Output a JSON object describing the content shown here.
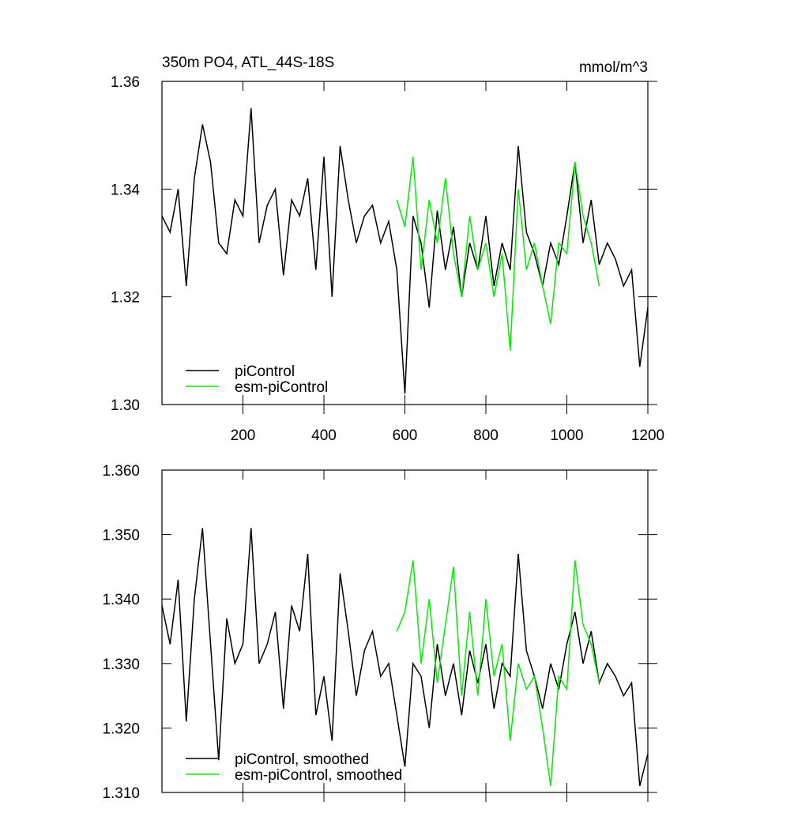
{
  "chart_data": [
    {
      "type": "line",
      "title": "350m PO4, ATL_44S-18S",
      "y_units": "mmol/m^3",
      "xlim": [
        0,
        1200
      ],
      "xticks": [
        200,
        400,
        600,
        800,
        1000,
        1200
      ],
      "ylim": [
        1.3,
        1.36
      ],
      "yticks": [
        {
          "value": 1.3,
          "label": "1.30"
        },
        1.32,
        1.34,
        1.36
      ],
      "legend": "lower left",
      "series": [
        {
          "name": "piControl",
          "color": "#000000",
          "x": [
            0,
            20,
            40,
            60,
            80,
            100,
            120,
            140,
            160,
            180,
            200,
            220,
            240,
            260,
            280,
            300,
            320,
            340,
            360,
            380,
            400,
            420,
            440,
            460,
            480,
            500,
            520,
            540,
            560,
            580,
            600,
            620,
            640,
            660,
            680,
            700,
            720,
            740,
            760,
            780,
            800,
            820,
            840,
            860,
            880,
            900,
            920,
            940,
            960,
            980,
            1000,
            1020,
            1040,
            1060,
            1080,
            1100,
            1120,
            1140,
            1160,
            1180,
            1200
          ],
          "values": [
            1.335,
            1.332,
            1.34,
            1.322,
            1.342,
            1.352,
            1.345,
            1.33,
            1.328,
            1.338,
            1.335,
            1.355,
            1.33,
            1.337,
            1.34,
            1.324,
            1.338,
            1.335,
            1.342,
            1.325,
            1.346,
            1.32,
            1.348,
            1.338,
            1.33,
            1.335,
            1.337,
            1.33,
            1.334,
            1.325,
            1.302,
            1.335,
            1.33,
            1.318,
            1.336,
            1.325,
            1.333,
            1.32,
            1.33,
            1.325,
            1.335,
            1.322,
            1.33,
            1.325,
            1.348,
            1.332,
            1.328,
            1.322,
            1.33,
            1.326,
            1.335,
            1.345,
            1.33,
            1.338,
            1.326,
            1.33,
            1.327,
            1.322,
            1.325,
            1.307,
            1.318
          ]
        },
        {
          "name": "esm-piControl",
          "color": "#00ee00",
          "x": [
            580,
            600,
            620,
            640,
            660,
            680,
            700,
            720,
            740,
            760,
            780,
            800,
            820,
            840,
            860,
            880,
            900,
            920,
            940,
            960,
            980,
            1000,
            1020,
            1040,
            1060,
            1080
          ],
          "values": [
            1.338,
            1.333,
            1.346,
            1.325,
            1.338,
            1.33,
            1.342,
            1.328,
            1.32,
            1.335,
            1.325,
            1.33,
            1.32,
            1.328,
            1.31,
            1.34,
            1.325,
            1.33,
            1.322,
            1.315,
            1.33,
            1.328,
            1.345,
            1.335,
            1.33,
            1.322
          ]
        }
      ]
    },
    {
      "type": "line",
      "xlim": [
        0,
        1200
      ],
      "xticks": [
        200,
        400,
        600,
        800,
        1000,
        1200
      ],
      "ylim": [
        1.31,
        1.36
      ],
      "yticks": [
        {
          "value": 1.31,
          "label": "1.310"
        },
        {
          "value": 1.32,
          "label": "1.320"
        },
        {
          "value": 1.33,
          "label": "1.330"
        },
        {
          "value": 1.34,
          "label": "1.340"
        },
        {
          "value": 1.35,
          "label": "1.350"
        },
        {
          "value": 1.36,
          "label": "1.360"
        }
      ],
      "legend": "lower left",
      "series": [
        {
          "name": "piControl, smoothed",
          "color": "#000000",
          "x": [
            0,
            20,
            40,
            60,
            80,
            100,
            120,
            140,
            160,
            180,
            200,
            220,
            240,
            260,
            280,
            300,
            320,
            340,
            360,
            380,
            400,
            420,
            440,
            460,
            480,
            500,
            520,
            540,
            560,
            580,
            600,
            620,
            640,
            660,
            680,
            700,
            720,
            740,
            760,
            780,
            800,
            820,
            840,
            860,
            880,
            900,
            920,
            940,
            960,
            980,
            1000,
            1020,
            1040,
            1060,
            1080,
            1100,
            1120,
            1140,
            1160,
            1180,
            1200
          ],
          "values": [
            1.339,
            1.333,
            1.343,
            1.321,
            1.34,
            1.351,
            1.333,
            1.315,
            1.337,
            1.33,
            1.333,
            1.351,
            1.33,
            1.333,
            1.338,
            1.323,
            1.339,
            1.335,
            1.347,
            1.322,
            1.328,
            1.318,
            1.344,
            1.335,
            1.325,
            1.332,
            1.335,
            1.328,
            1.33,
            1.322,
            1.314,
            1.33,
            1.328,
            1.32,
            1.333,
            1.325,
            1.33,
            1.322,
            1.332,
            1.327,
            1.333,
            1.323,
            1.33,
            1.328,
            1.347,
            1.332,
            1.328,
            1.323,
            1.33,
            1.326,
            1.333,
            1.338,
            1.33,
            1.335,
            1.327,
            1.33,
            1.328,
            1.325,
            1.327,
            1.311,
            1.316
          ]
        },
        {
          "name": "esm-piControl, smoothed",
          "color": "#00ee00",
          "x": [
            580,
            600,
            620,
            640,
            660,
            680,
            700,
            720,
            740,
            760,
            780,
            800,
            820,
            840,
            860,
            880,
            900,
            920,
            940,
            960,
            980,
            1000,
            1020,
            1040,
            1060,
            1080
          ],
          "values": [
            1.335,
            1.338,
            1.346,
            1.33,
            1.34,
            1.327,
            1.336,
            1.345,
            1.325,
            1.338,
            1.325,
            1.34,
            1.328,
            1.333,
            1.318,
            1.33,
            1.326,
            1.328,
            1.32,
            1.311,
            1.328,
            1.326,
            1.346,
            1.336,
            1.333,
            1.327
          ]
        }
      ]
    }
  ]
}
